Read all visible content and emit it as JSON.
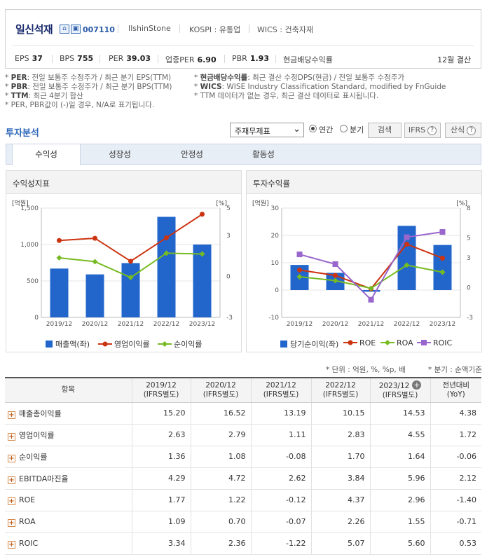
{
  "header": {
    "company_name": "일신석재",
    "stock_code": "007110",
    "english_name": "IlshinStone",
    "market": "KOSPI : 유통업",
    "wics": "WICS : 건축자재",
    "settlement": "12월 결산",
    "metrics": [
      {
        "label": "EPS",
        "value": "37"
      },
      {
        "label": "BPS",
        "value": "755"
      },
      {
        "label": "PER",
        "value": "39.03"
      },
      {
        "label": "업종PER",
        "value": "6.90"
      },
      {
        "label": "PBR",
        "value": "1.93"
      },
      {
        "label": "현금배당수익률",
        "value": ""
      }
    ]
  },
  "notes_left": [
    {
      "key": "PER",
      "text": ": 전일 보통주 수정주가 / 최근 분기 EPS(TTM)"
    },
    {
      "key": "PBR",
      "text": ": 전일 보통주 수정주가 / 최근 분기 BPS(TTM)"
    },
    {
      "key": "TTM",
      "text": ": 최근 4분기 합산"
    },
    {
      "key": "",
      "text": "PER, PBR값이 (-)일 경우, N/A로 표기됩니다."
    }
  ],
  "notes_right": [
    {
      "key": "현금배당수익률",
      "text": ": 최근 결산 수정DPS(현금) / 전일 보통주 수정주가"
    },
    {
      "key": "WICS",
      "text": ": WISE Industry Classification Standard, modified by FnGuide"
    },
    {
      "key": "",
      "text": "TTM 데이터가 없는 경우, 최근 결산 데이터로 표시됩니다."
    }
  ],
  "analysis": {
    "title": "투자분석",
    "select_value": "주재무제표",
    "radio_annual": "연간",
    "radio_quarter": "분기",
    "search_button": "검색",
    "ifrs_button": "IFRS",
    "calc_button": "산식"
  },
  "tabs": [
    "수익성",
    "성장성",
    "안정성",
    "활동성"
  ],
  "panels": {
    "left_title": "수익성지표",
    "right_title": "투자수익률",
    "left_unit_left": "[억원]",
    "left_unit_right": "[%]",
    "right_unit_left": "[억원]",
    "right_unit_right": "[%]"
  },
  "chart_data": [
    {
      "type": "bar",
      "title": "수익성지표",
      "categories": [
        "2019/12",
        "2020/12",
        "2021/12",
        "2022/12",
        "2023/12"
      ],
      "y_left_ticks": [
        "0",
        "500",
        "1,000",
        "1,500"
      ],
      "y_right_ticks": [
        "-3",
        "0",
        "3",
        "5"
      ],
      "ylim_left": [
        0,
        1500
      ],
      "ylim_right": [
        -3,
        5
      ],
      "series": [
        {
          "name": "매출액(좌)",
          "axis": "left",
          "kind": "bar",
          "color": "#2266cc",
          "values": [
            670,
            590,
            745,
            1380,
            1000
          ]
        },
        {
          "name": "영업이익률",
          "axis": "right",
          "kind": "line",
          "color": "#cc3311",
          "values": [
            2.63,
            2.79,
            1.11,
            2.83,
            4.55
          ]
        },
        {
          "name": "순이익률",
          "axis": "right",
          "kind": "line",
          "color": "#77bb22",
          "values": [
            1.36,
            1.08,
            -0.08,
            1.7,
            1.64
          ]
        }
      ]
    },
    {
      "type": "bar",
      "title": "투자수익률",
      "categories": [
        "2019/12",
        "2020/12",
        "2021/12",
        "2022/12",
        "2023/12"
      ],
      "y_left_ticks": [
        "-10",
        "0",
        "10",
        "20",
        "30"
      ],
      "y_right_ticks": [
        "-3",
        "0",
        "3",
        "5",
        "8"
      ],
      "ylim_left": [
        -10,
        30
      ],
      "ylim_right": [
        -3,
        8
      ],
      "series": [
        {
          "name": "당기순이익(좌)",
          "axis": "left",
          "kind": "bar",
          "color": "#2266cc",
          "values": [
            9.2,
            6.3,
            -0.6,
            23.5,
            16.5
          ]
        },
        {
          "name": "ROE",
          "axis": "right",
          "kind": "line",
          "color": "#cc3311",
          "values": [
            1.77,
            1.22,
            -0.12,
            4.37,
            2.96
          ]
        },
        {
          "name": "ROA",
          "axis": "right",
          "kind": "line",
          "color": "#77bb22",
          "values": [
            1.09,
            0.7,
            -0.07,
            2.26,
            1.55
          ]
        },
        {
          "name": "ROIC",
          "axis": "right",
          "kind": "line",
          "color": "#9966cc",
          "values": [
            3.34,
            2.36,
            -1.22,
            5.07,
            5.6
          ]
        }
      ]
    }
  ],
  "units_note": "* 단위 : 억원, %, %p, 배",
  "period_note": "* 분기 : 순액기준",
  "table": {
    "headers": [
      {
        "l1": "항목",
        "l2": ""
      },
      {
        "l1": "2019/12",
        "l2": "(IFRS별도)"
      },
      {
        "l1": "2020/12",
        "l2": "(IFRS별도)"
      },
      {
        "l1": "2021/12",
        "l2": "(IFRS별도)"
      },
      {
        "l1": "2022/12",
        "l2": "(IFRS별도)"
      },
      {
        "l1": "2023/12",
        "l2": "(IFRS별도)"
      },
      {
        "l1": "전년대비",
        "l2": "(YoY)"
      }
    ],
    "rows": [
      {
        "label": "매출총이익률",
        "values": [
          "15.20",
          "16.52",
          "13.19",
          "10.15",
          "14.53",
          "4.38"
        ]
      },
      {
        "label": "영업이익률",
        "values": [
          "2.63",
          "2.79",
          "1.11",
          "2.83",
          "4.55",
          "1.72"
        ]
      },
      {
        "label": "순이익률",
        "values": [
          "1.36",
          "1.08",
          "-0.08",
          "1.70",
          "1.64",
          "-0.06"
        ]
      },
      {
        "label": "EBITDA마진율",
        "values": [
          "4.29",
          "4.72",
          "2.62",
          "3.84",
          "5.96",
          "2.12"
        ]
      },
      {
        "label": "ROE",
        "values": [
          "1.77",
          "1.22",
          "-0.12",
          "4.37",
          "2.96",
          "-1.40"
        ]
      },
      {
        "label": "ROA",
        "values": [
          "1.09",
          "0.70",
          "-0.07",
          "2.26",
          "1.55",
          "-0.71"
        ]
      },
      {
        "label": "ROIC",
        "values": [
          "3.34",
          "2.36",
          "-1.22",
          "5.07",
          "5.60",
          "0.53"
        ]
      }
    ]
  }
}
